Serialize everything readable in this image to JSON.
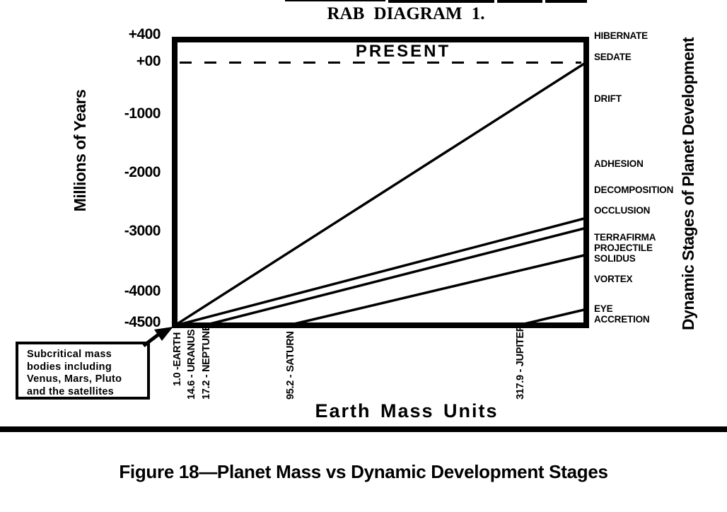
{
  "document": {
    "figure_caption": "Figure 18—Planet Mass vs Dynamic Development Stages"
  },
  "chart_data": {
    "type": "line",
    "title": "RAB DIAGRAM 1.",
    "present_label": "PRESENT",
    "xlabel": "Earth Mass Units",
    "ylabel": "Millions of Years",
    "right_axis_label": "Dynamic Stages of Planet Development",
    "y_axis": {
      "ticks": [
        "+400",
        "+00",
        "-1000",
        "-2000",
        "-3000",
        "-4000",
        "-4500"
      ],
      "range_myr": [
        -4500,
        400
      ],
      "present_line_myr": 0
    },
    "x_axis": {
      "ticks": [
        "1.0 -EARTH",
        "14.6 - URANUS",
        "17.2 - NEPTUNE",
        "95.2 - SATURN",
        "317.9 - JUPITER"
      ],
      "tick_masses_emu": [
        1.0,
        14.6,
        17.2,
        95.2,
        317.9
      ]
    },
    "stages": [
      "HIBERNATE",
      "SEDATE",
      "DRIFT",
      "ADHESION",
      "DECOMPOSITION",
      "OCCLUSION",
      "TERRAFIRMA",
      "PROJECTILE",
      "SOLIDUS",
      "VORTEX",
      "EYE",
      "ACCRETION"
    ],
    "series": [
      {
        "name": "earth-line",
        "start": {
          "mass_emu": 1.0,
          "myr": -4500
        },
        "end_stage": "SEDATE",
        "end_myr": 0,
        "px": [
          249,
          459,
          826,
          90
        ]
      },
      {
        "name": "occlusion-line",
        "start": {
          "mass_emu": 1.0,
          "myr": -4500
        },
        "end_stage": "OCCLUSION",
        "end_myr": -2800,
        "px": [
          253,
          459,
          826,
          309
        ]
      },
      {
        "name": "terrafirma-line",
        "start": {
          "mass_emu": 17.2,
          "myr": -4500
        },
        "end_stage": "TERRAFIRMA / PROJECTILE",
        "end_myr": -2950,
        "px": [
          293,
          459,
          826,
          323
        ]
      },
      {
        "name": "solidus-line",
        "start": {
          "mass_emu": 95.2,
          "myr": -4500
        },
        "end_stage": "SOLIDUS",
        "end_myr": -3400,
        "px": [
          412,
          459,
          826,
          361
        ]
      },
      {
        "name": "eye-line",
        "start": {
          "mass_emu": 317.9,
          "myr": -4500
        },
        "end_stage": "EYE / ACCRETION",
        "end_myr": -4300,
        "px": [
          737,
          459,
          826,
          438
        ]
      }
    ],
    "annotation": {
      "lines": [
        "Subcritical mass",
        "bodies including",
        "Venus, Mars, Pluto",
        "and the satellites"
      ],
      "points_to": "chart origin (subcritical mass, -4500 Myr)"
    }
  },
  "colors": {
    "ink": "#000000",
    "paper": "#ffffff"
  }
}
